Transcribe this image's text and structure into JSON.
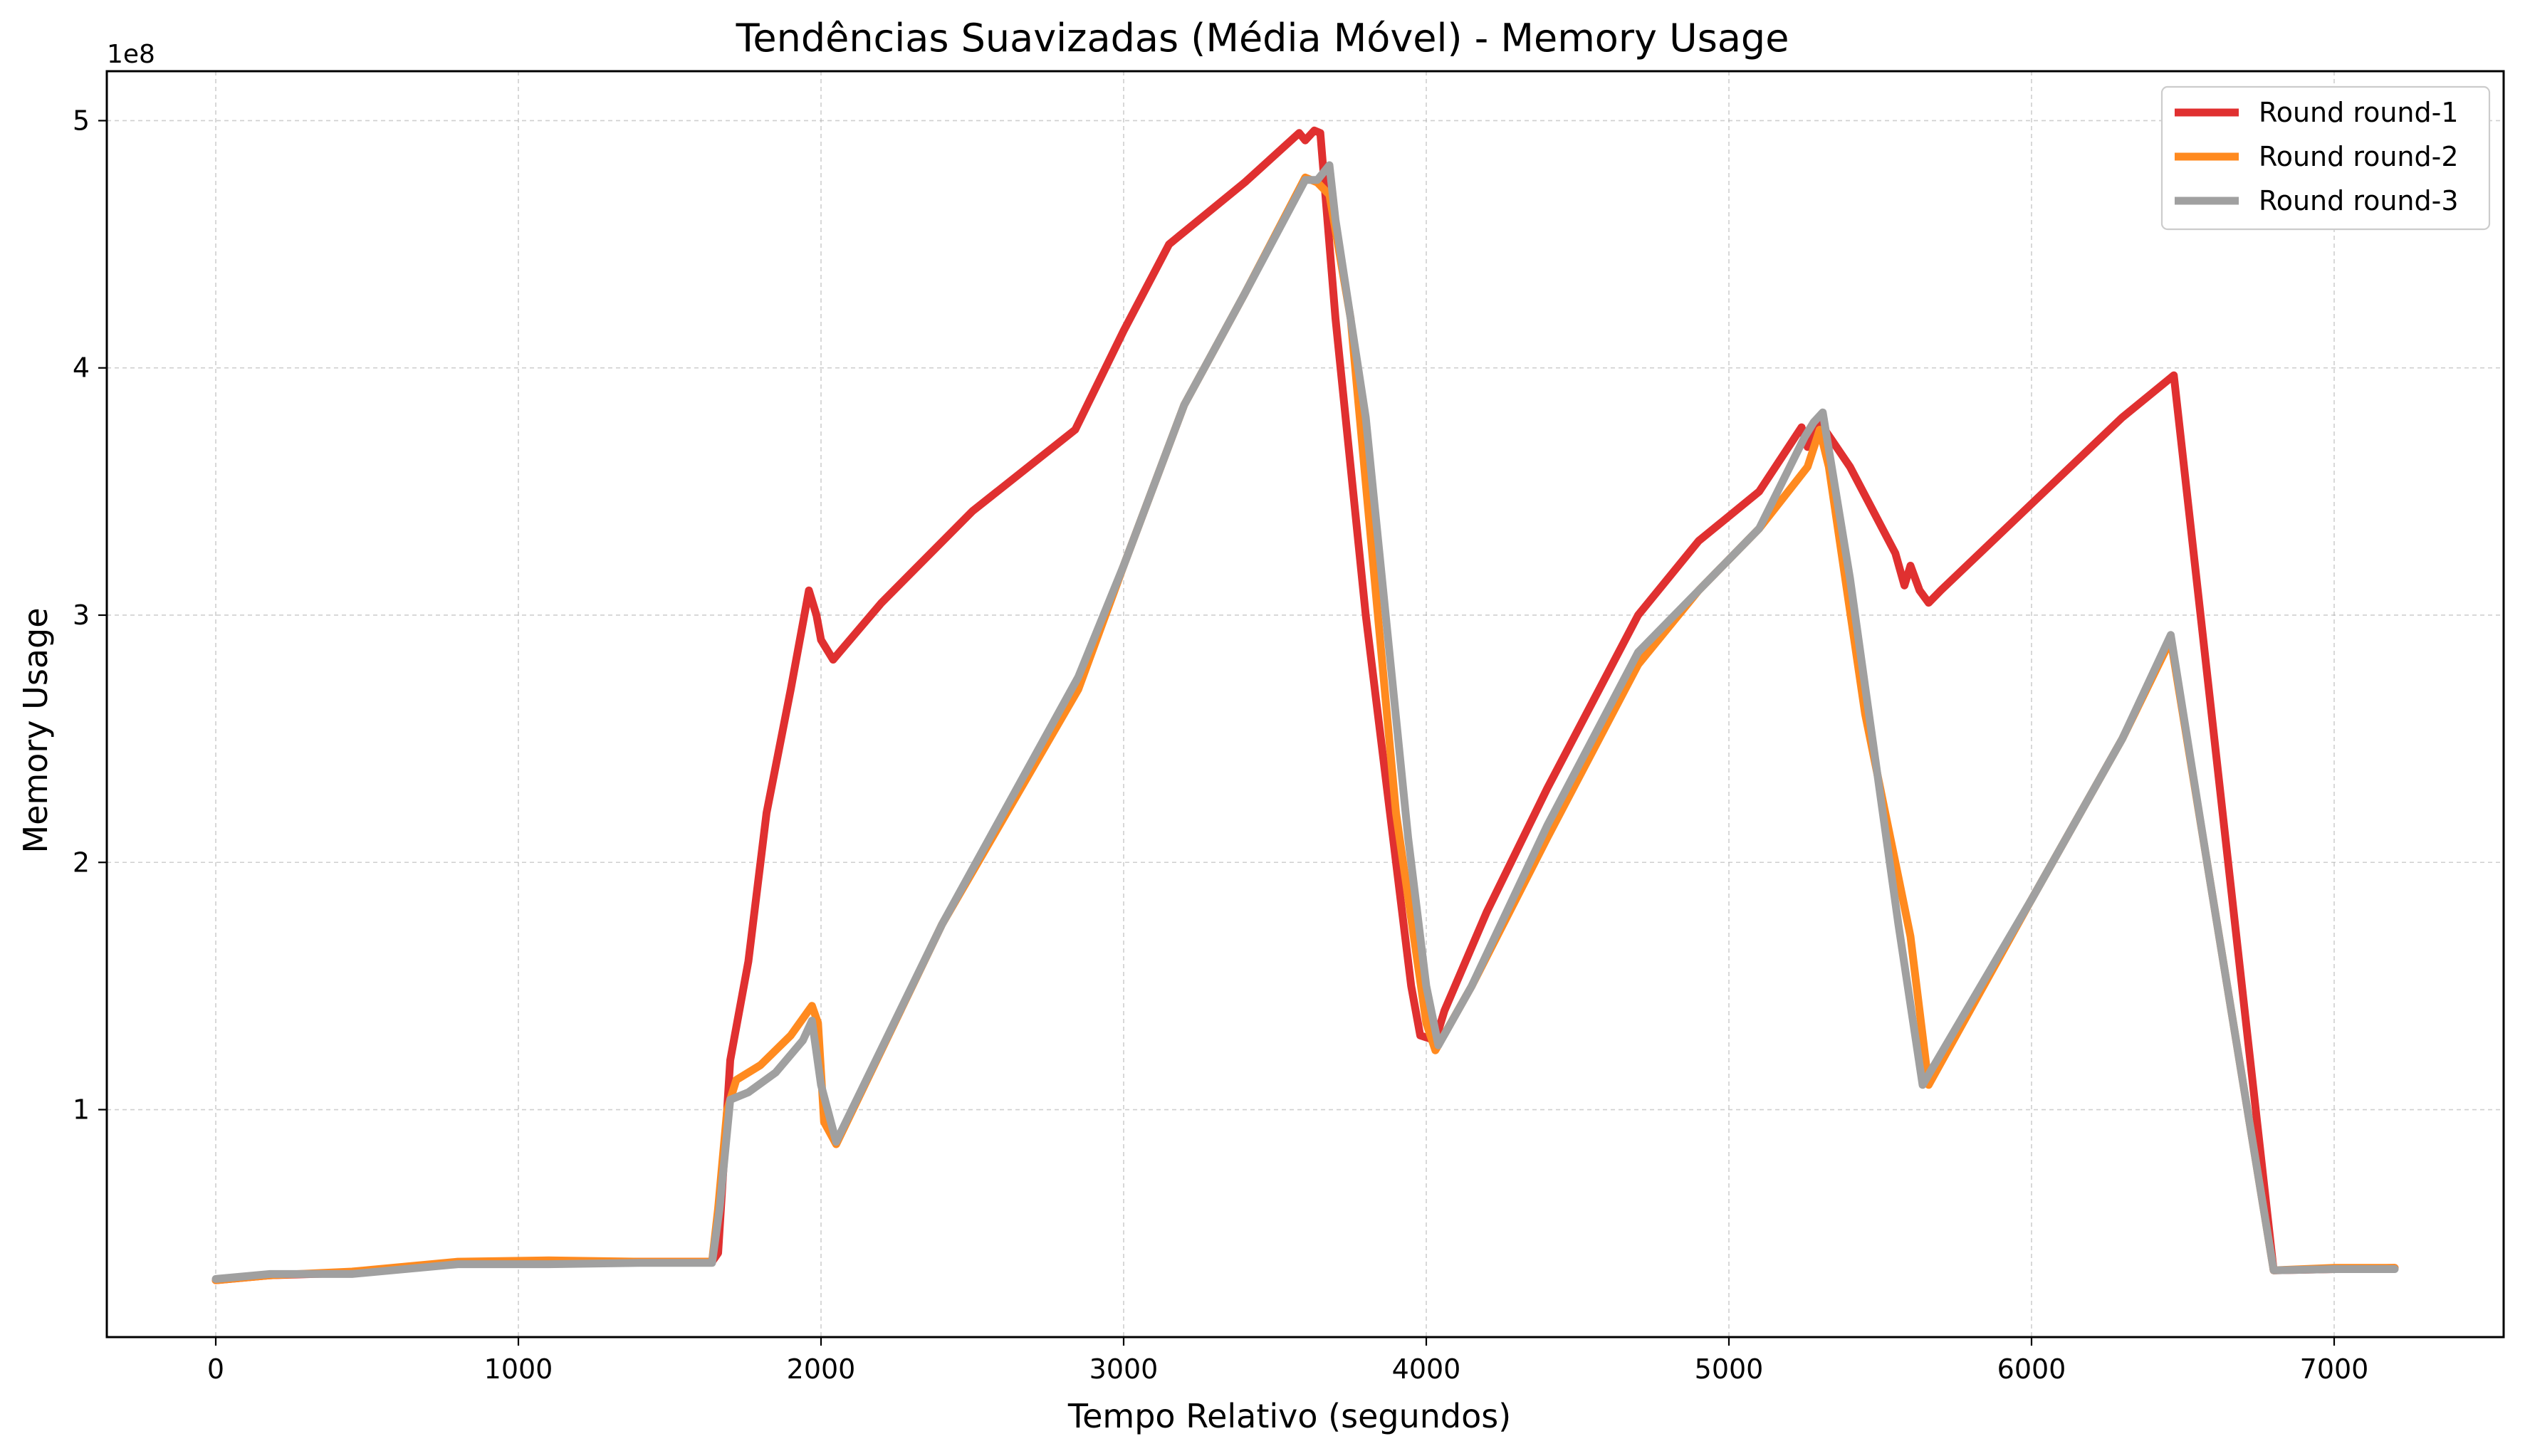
{
  "chart_data": {
    "type": "line",
    "title": "Tendências Suavizadas (Média Móvel) - Memory Usage",
    "xlabel": "Tempo Relativo (segundos)",
    "ylabel": "Memory Usage",
    "y_offset_label": "1e8",
    "xlim": [
      -360,
      7560
    ],
    "ylim": [
      0.08,
      5.2
    ],
    "x_ticks": [
      0,
      1000,
      2000,
      3000,
      4000,
      5000,
      6000,
      7000
    ],
    "x_tick_labels": [
      "0",
      "1000",
      "2000",
      "3000",
      "4000",
      "5000",
      "6000",
      "7000"
    ],
    "y_ticks": [
      1,
      2,
      3,
      4,
      5
    ],
    "y_tick_labels": [
      "1",
      "2",
      "3",
      "4",
      "5"
    ],
    "y_unit_scale": "1e8",
    "grid": true,
    "legend_position": "top-right",
    "series": [
      {
        "name": "Round round-1",
        "color": "#e03030",
        "points": [
          [
            0,
            0.31
          ],
          [
            180,
            0.33
          ],
          [
            450,
            0.34
          ],
          [
            800,
            0.38
          ],
          [
            1100,
            0.385
          ],
          [
            1400,
            0.385
          ],
          [
            1640,
            0.385
          ],
          [
            1660,
            0.42
          ],
          [
            1700,
            1.2
          ],
          [
            1760,
            1.6
          ],
          [
            1820,
            2.2
          ],
          [
            1900,
            2.7
          ],
          [
            1960,
            3.1
          ],
          [
            1985,
            3.0
          ],
          [
            2000,
            2.9
          ],
          [
            2040,
            2.82
          ],
          [
            2200,
            3.05
          ],
          [
            2500,
            3.42
          ],
          [
            2840,
            3.75
          ],
          [
            3000,
            4.15
          ],
          [
            3150,
            4.5
          ],
          [
            3200,
            4.55
          ],
          [
            3400,
            4.75
          ],
          [
            3580,
            4.95
          ],
          [
            3600,
            4.92
          ],
          [
            3630,
            4.96
          ],
          [
            3650,
            4.95
          ],
          [
            3700,
            4.2
          ],
          [
            3800,
            3.0
          ],
          [
            3950,
            1.5
          ],
          [
            3980,
            1.3
          ],
          [
            4030,
            1.28
          ],
          [
            4060,
            1.4
          ],
          [
            4200,
            1.8
          ],
          [
            4400,
            2.3
          ],
          [
            4700,
            3.0
          ],
          [
            4900,
            3.3
          ],
          [
            5100,
            3.5
          ],
          [
            5240,
            3.76
          ],
          [
            5260,
            3.68
          ],
          [
            5300,
            3.78
          ],
          [
            5400,
            3.6
          ],
          [
            5550,
            3.25
          ],
          [
            5580,
            3.12
          ],
          [
            5600,
            3.2
          ],
          [
            5630,
            3.1
          ],
          [
            5660,
            3.05
          ],
          [
            5700,
            3.1
          ],
          [
            6000,
            3.45
          ],
          [
            6300,
            3.8
          ],
          [
            6450,
            3.95
          ],
          [
            6470,
            3.97
          ],
          [
            6800,
            0.35
          ],
          [
            7000,
            0.355
          ],
          [
            7200,
            0.36
          ]
        ]
      },
      {
        "name": "Round round-2",
        "color": "#ff8a1f",
        "points": [
          [
            0,
            0.31
          ],
          [
            180,
            0.33
          ],
          [
            450,
            0.345
          ],
          [
            800,
            0.385
          ],
          [
            1100,
            0.39
          ],
          [
            1400,
            0.385
          ],
          [
            1640,
            0.385
          ],
          [
            1660,
            0.6
          ],
          [
            1690,
            1.0
          ],
          [
            1720,
            1.12
          ],
          [
            1800,
            1.18
          ],
          [
            1900,
            1.3
          ],
          [
            1970,
            1.42
          ],
          [
            1990,
            1.35
          ],
          [
            2010,
            0.95
          ],
          [
            2050,
            0.86
          ],
          [
            2400,
            1.75
          ],
          [
            2850,
            2.7
          ],
          [
            3000,
            3.2
          ],
          [
            3200,
            3.85
          ],
          [
            3400,
            4.3
          ],
          [
            3600,
            4.77
          ],
          [
            3640,
            4.75
          ],
          [
            3680,
            4.7
          ],
          [
            3750,
            4.2
          ],
          [
            3900,
            2.2
          ],
          [
            4000,
            1.35
          ],
          [
            4030,
            1.24
          ],
          [
            4150,
            1.5
          ],
          [
            4400,
            2.1
          ],
          [
            4700,
            2.8
          ],
          [
            4900,
            3.1
          ],
          [
            5100,
            3.35
          ],
          [
            5260,
            3.6
          ],
          [
            5300,
            3.75
          ],
          [
            5330,
            3.6
          ],
          [
            5450,
            2.6
          ],
          [
            5600,
            1.7
          ],
          [
            5660,
            1.1
          ],
          [
            6000,
            1.85
          ],
          [
            6300,
            2.5
          ],
          [
            6460,
            2.9
          ],
          [
            6580,
            2.0
          ],
          [
            6800,
            0.35
          ],
          [
            7000,
            0.36
          ],
          [
            7200,
            0.36
          ]
        ]
      },
      {
        "name": "Round round-3",
        "color": "#a0a0a0",
        "points": [
          [
            0,
            0.315
          ],
          [
            180,
            0.335
          ],
          [
            450,
            0.335
          ],
          [
            800,
            0.375
          ],
          [
            1100,
            0.375
          ],
          [
            1400,
            0.38
          ],
          [
            1640,
            0.38
          ],
          [
            1665,
            0.6
          ],
          [
            1700,
            1.04
          ],
          [
            1760,
            1.07
          ],
          [
            1850,
            1.15
          ],
          [
            1940,
            1.28
          ],
          [
            1970,
            1.36
          ],
          [
            2000,
            1.1
          ],
          [
            2050,
            0.87
          ],
          [
            2400,
            1.75
          ],
          [
            2850,
            2.75
          ],
          [
            3000,
            3.2
          ],
          [
            3200,
            3.85
          ],
          [
            3400,
            4.3
          ],
          [
            3600,
            4.76
          ],
          [
            3640,
            4.76
          ],
          [
            3680,
            4.82
          ],
          [
            3700,
            4.6
          ],
          [
            3800,
            3.8
          ],
          [
            3940,
            2.1
          ],
          [
            4000,
            1.5
          ],
          [
            4040,
            1.26
          ],
          [
            4150,
            1.5
          ],
          [
            4400,
            2.15
          ],
          [
            4700,
            2.85
          ],
          [
            4900,
            3.1
          ],
          [
            5100,
            3.35
          ],
          [
            5250,
            3.72
          ],
          [
            5280,
            3.78
          ],
          [
            5310,
            3.82
          ],
          [
            5400,
            3.15
          ],
          [
            5560,
            1.75
          ],
          [
            5640,
            1.1
          ],
          [
            6000,
            1.85
          ],
          [
            6300,
            2.5
          ],
          [
            6460,
            2.92
          ],
          [
            6580,
            2.0
          ],
          [
            6800,
            0.35
          ],
          [
            7000,
            0.355
          ],
          [
            7200,
            0.355
          ]
        ]
      }
    ]
  }
}
